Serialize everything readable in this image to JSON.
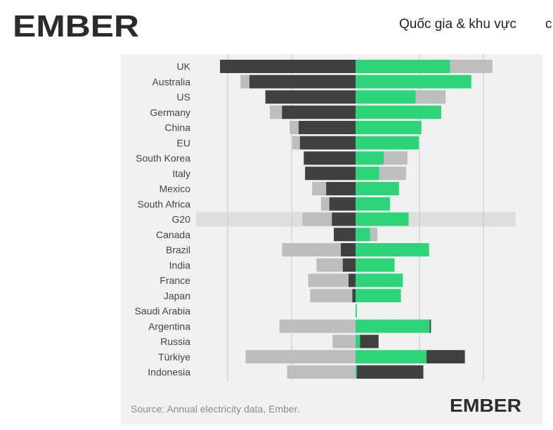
{
  "header": {
    "logo_text": "EMBER",
    "nav_label": "Quốc gia & khu vực",
    "nav_next": "c"
  },
  "footer": {
    "source": "Source: Annual electricity data, Ember.",
    "logo_text": "EMBER"
  },
  "colors": {
    "dark": "#404040",
    "grey": "#bdbdbd",
    "green": "#2ed47a",
    "highlight_band": "#dedede",
    "logo_dark": "#2b2b2b",
    "logo_green": "#1fce73"
  },
  "chart_data": {
    "type": "bar",
    "orientation": "horizontal-diverging",
    "title": "",
    "xlabel": "",
    "ylabel": "",
    "grid": true,
    "highlighted_category": "G20",
    "categories": [
      "UK",
      "Australia",
      "US",
      "Germany",
      "China",
      "EU",
      "South Korea",
      "Italy",
      "Mexico",
      "South Africa",
      "G20",
      "Canada",
      "Brazil",
      "India",
      "France",
      "Japan",
      "Saudi Arabia",
      "Argentina",
      "Russia",
      "Türkiye",
      "Indonesia"
    ],
    "bars": [
      {
        "category": "UK",
        "segments": [
          [
            -21.2,
            0,
            "dark"
          ],
          [
            0,
            14.8,
            "green"
          ],
          [
            14.8,
            21.4,
            "grey"
          ]
        ]
      },
      {
        "category": "Australia",
        "segments": [
          [
            -18.0,
            -16.6,
            "grey"
          ],
          [
            -16.6,
            0,
            "dark"
          ],
          [
            0,
            18.1,
            "green"
          ]
        ]
      },
      {
        "category": "US",
        "segments": [
          [
            -14.1,
            0,
            "dark"
          ],
          [
            0,
            9.4,
            "green"
          ],
          [
            9.4,
            14.1,
            "grey"
          ]
        ]
      },
      {
        "category": "Germany",
        "segments": [
          [
            -13.4,
            -11.5,
            "grey"
          ],
          [
            -11.5,
            0,
            "dark"
          ],
          [
            0,
            13.4,
            "green"
          ]
        ]
      },
      {
        "category": "China",
        "segments": [
          [
            -10.3,
            -8.9,
            "grey"
          ],
          [
            -8.9,
            0,
            "dark"
          ],
          [
            0,
            10.3,
            "green"
          ]
        ]
      },
      {
        "category": "EU",
        "segments": [
          [
            -9.9,
            -8.7,
            "grey"
          ],
          [
            -8.7,
            0,
            "dark"
          ],
          [
            0,
            9.9,
            "green"
          ]
        ]
      },
      {
        "category": "South Korea",
        "segments": [
          [
            -8.1,
            0,
            "dark"
          ],
          [
            0,
            4.4,
            "green"
          ],
          [
            4.4,
            8.1,
            "grey"
          ]
        ]
      },
      {
        "category": "Italy",
        "segments": [
          [
            -7.9,
            0,
            "dark"
          ],
          [
            0,
            3.7,
            "green"
          ],
          [
            3.7,
            7.9,
            "grey"
          ]
        ]
      },
      {
        "category": "Mexico",
        "segments": [
          [
            -6.8,
            -4.6,
            "grey"
          ],
          [
            -4.6,
            0,
            "dark"
          ],
          [
            0,
            6.8,
            "green"
          ]
        ]
      },
      {
        "category": "South Africa",
        "segments": [
          [
            -5.4,
            -4.1,
            "grey"
          ],
          [
            -4.1,
            0,
            "dark"
          ],
          [
            0,
            5.4,
            "green"
          ]
        ]
      },
      {
        "category": "G20",
        "segments": [
          [
            -8.3,
            -3.7,
            "grey"
          ],
          [
            -3.7,
            0,
            "dark"
          ],
          [
            0,
            8.3,
            "green"
          ]
        ]
      },
      {
        "category": "Canada",
        "segments": [
          [
            -3.4,
            0,
            "dark"
          ],
          [
            0,
            2.3,
            "green"
          ],
          [
            2.3,
            3.4,
            "grey"
          ]
        ]
      },
      {
        "category": "Brazil",
        "segments": [
          [
            -11.5,
            -2.3,
            "grey"
          ],
          [
            -2.3,
            0,
            "dark"
          ],
          [
            0,
            11.5,
            "green"
          ]
        ]
      },
      {
        "category": "India",
        "segments": [
          [
            -6.1,
            -2.0,
            "grey"
          ],
          [
            -2.0,
            0,
            "dark"
          ],
          [
            0,
            6.1,
            "green"
          ]
        ]
      },
      {
        "category": "France",
        "segments": [
          [
            -7.4,
            -1.1,
            "grey"
          ],
          [
            -1.1,
            0,
            "dark"
          ],
          [
            0,
            7.4,
            "green"
          ]
        ]
      },
      {
        "category": "Japan",
        "segments": [
          [
            -7.1,
            -0.5,
            "grey"
          ],
          [
            -0.5,
            0,
            "dark"
          ],
          [
            0,
            7.1,
            "green"
          ]
        ]
      },
      {
        "category": "Saudi Arabia",
        "segments": [
          [
            0,
            0.2,
            "green"
          ]
        ]
      },
      {
        "category": "Argentina",
        "segments": [
          [
            -11.9,
            0,
            "grey"
          ],
          [
            0,
            11.6,
            "green"
          ],
          [
            11.6,
            11.8,
            "dark"
          ]
        ]
      },
      {
        "category": "Russia",
        "segments": [
          [
            -3.6,
            0,
            "grey"
          ],
          [
            0,
            0.7,
            "green"
          ],
          [
            0.7,
            3.6,
            "dark"
          ]
        ]
      },
      {
        "category": "Türkiye",
        "segments": [
          [
            -17.2,
            0,
            "grey"
          ],
          [
            0,
            11.1,
            "green"
          ],
          [
            11.1,
            17.1,
            "dark"
          ]
        ]
      },
      {
        "category": "Indonesia",
        "segments": [
          [
            -10.7,
            0,
            "grey"
          ],
          [
            0,
            0.2,
            "green"
          ],
          [
            0.2,
            10.6,
            "dark"
          ]
        ]
      }
    ],
    "xlim": [
      -23,
      26
    ],
    "gridlines": [
      -20,
      -10,
      0,
      10,
      20
    ]
  }
}
